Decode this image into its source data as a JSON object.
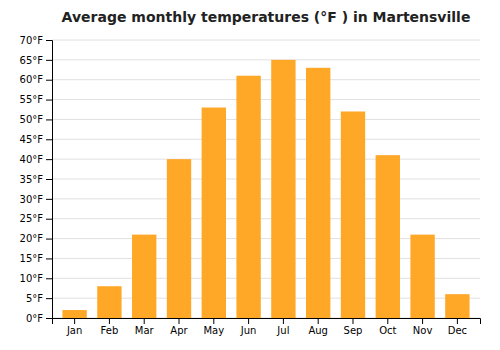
{
  "chart_data": {
    "type": "bar",
    "title": "Average monthly temperatures (°F ) in Martensville",
    "categories": [
      "Jan",
      "Feb",
      "Mar",
      "Apr",
      "May",
      "Jun",
      "Jul",
      "Aug",
      "Sep",
      "Oct",
      "Nov",
      "Dec"
    ],
    "values": [
      2,
      8,
      21,
      40,
      53,
      61,
      65,
      63,
      52,
      41,
      21,
      6
    ],
    "color": "#FFA726",
    "ylim": [
      0,
      70
    ],
    "yticks": [
      {
        "value": 0,
        "label": "0°F"
      },
      {
        "value": 5,
        "label": "5°F"
      },
      {
        "value": 10,
        "label": "10°F"
      },
      {
        "value": 15,
        "label": "15°F"
      },
      {
        "value": 20,
        "label": "20°F"
      },
      {
        "value": 25,
        "label": "25°F"
      },
      {
        "value": 30,
        "label": "30°F"
      },
      {
        "value": 35,
        "label": "35°F"
      },
      {
        "value": 40,
        "label": "40°F"
      },
      {
        "value": 45,
        "label": "45°F"
      },
      {
        "value": 50,
        "label": "50°F"
      },
      {
        "value": 55,
        "label": "55°F"
      },
      {
        "value": 60,
        "label": "60°F"
      },
      {
        "value": 65,
        "label": "65°F"
      },
      {
        "value": 70,
        "label": "70°F"
      }
    ],
    "grid": true
  }
}
